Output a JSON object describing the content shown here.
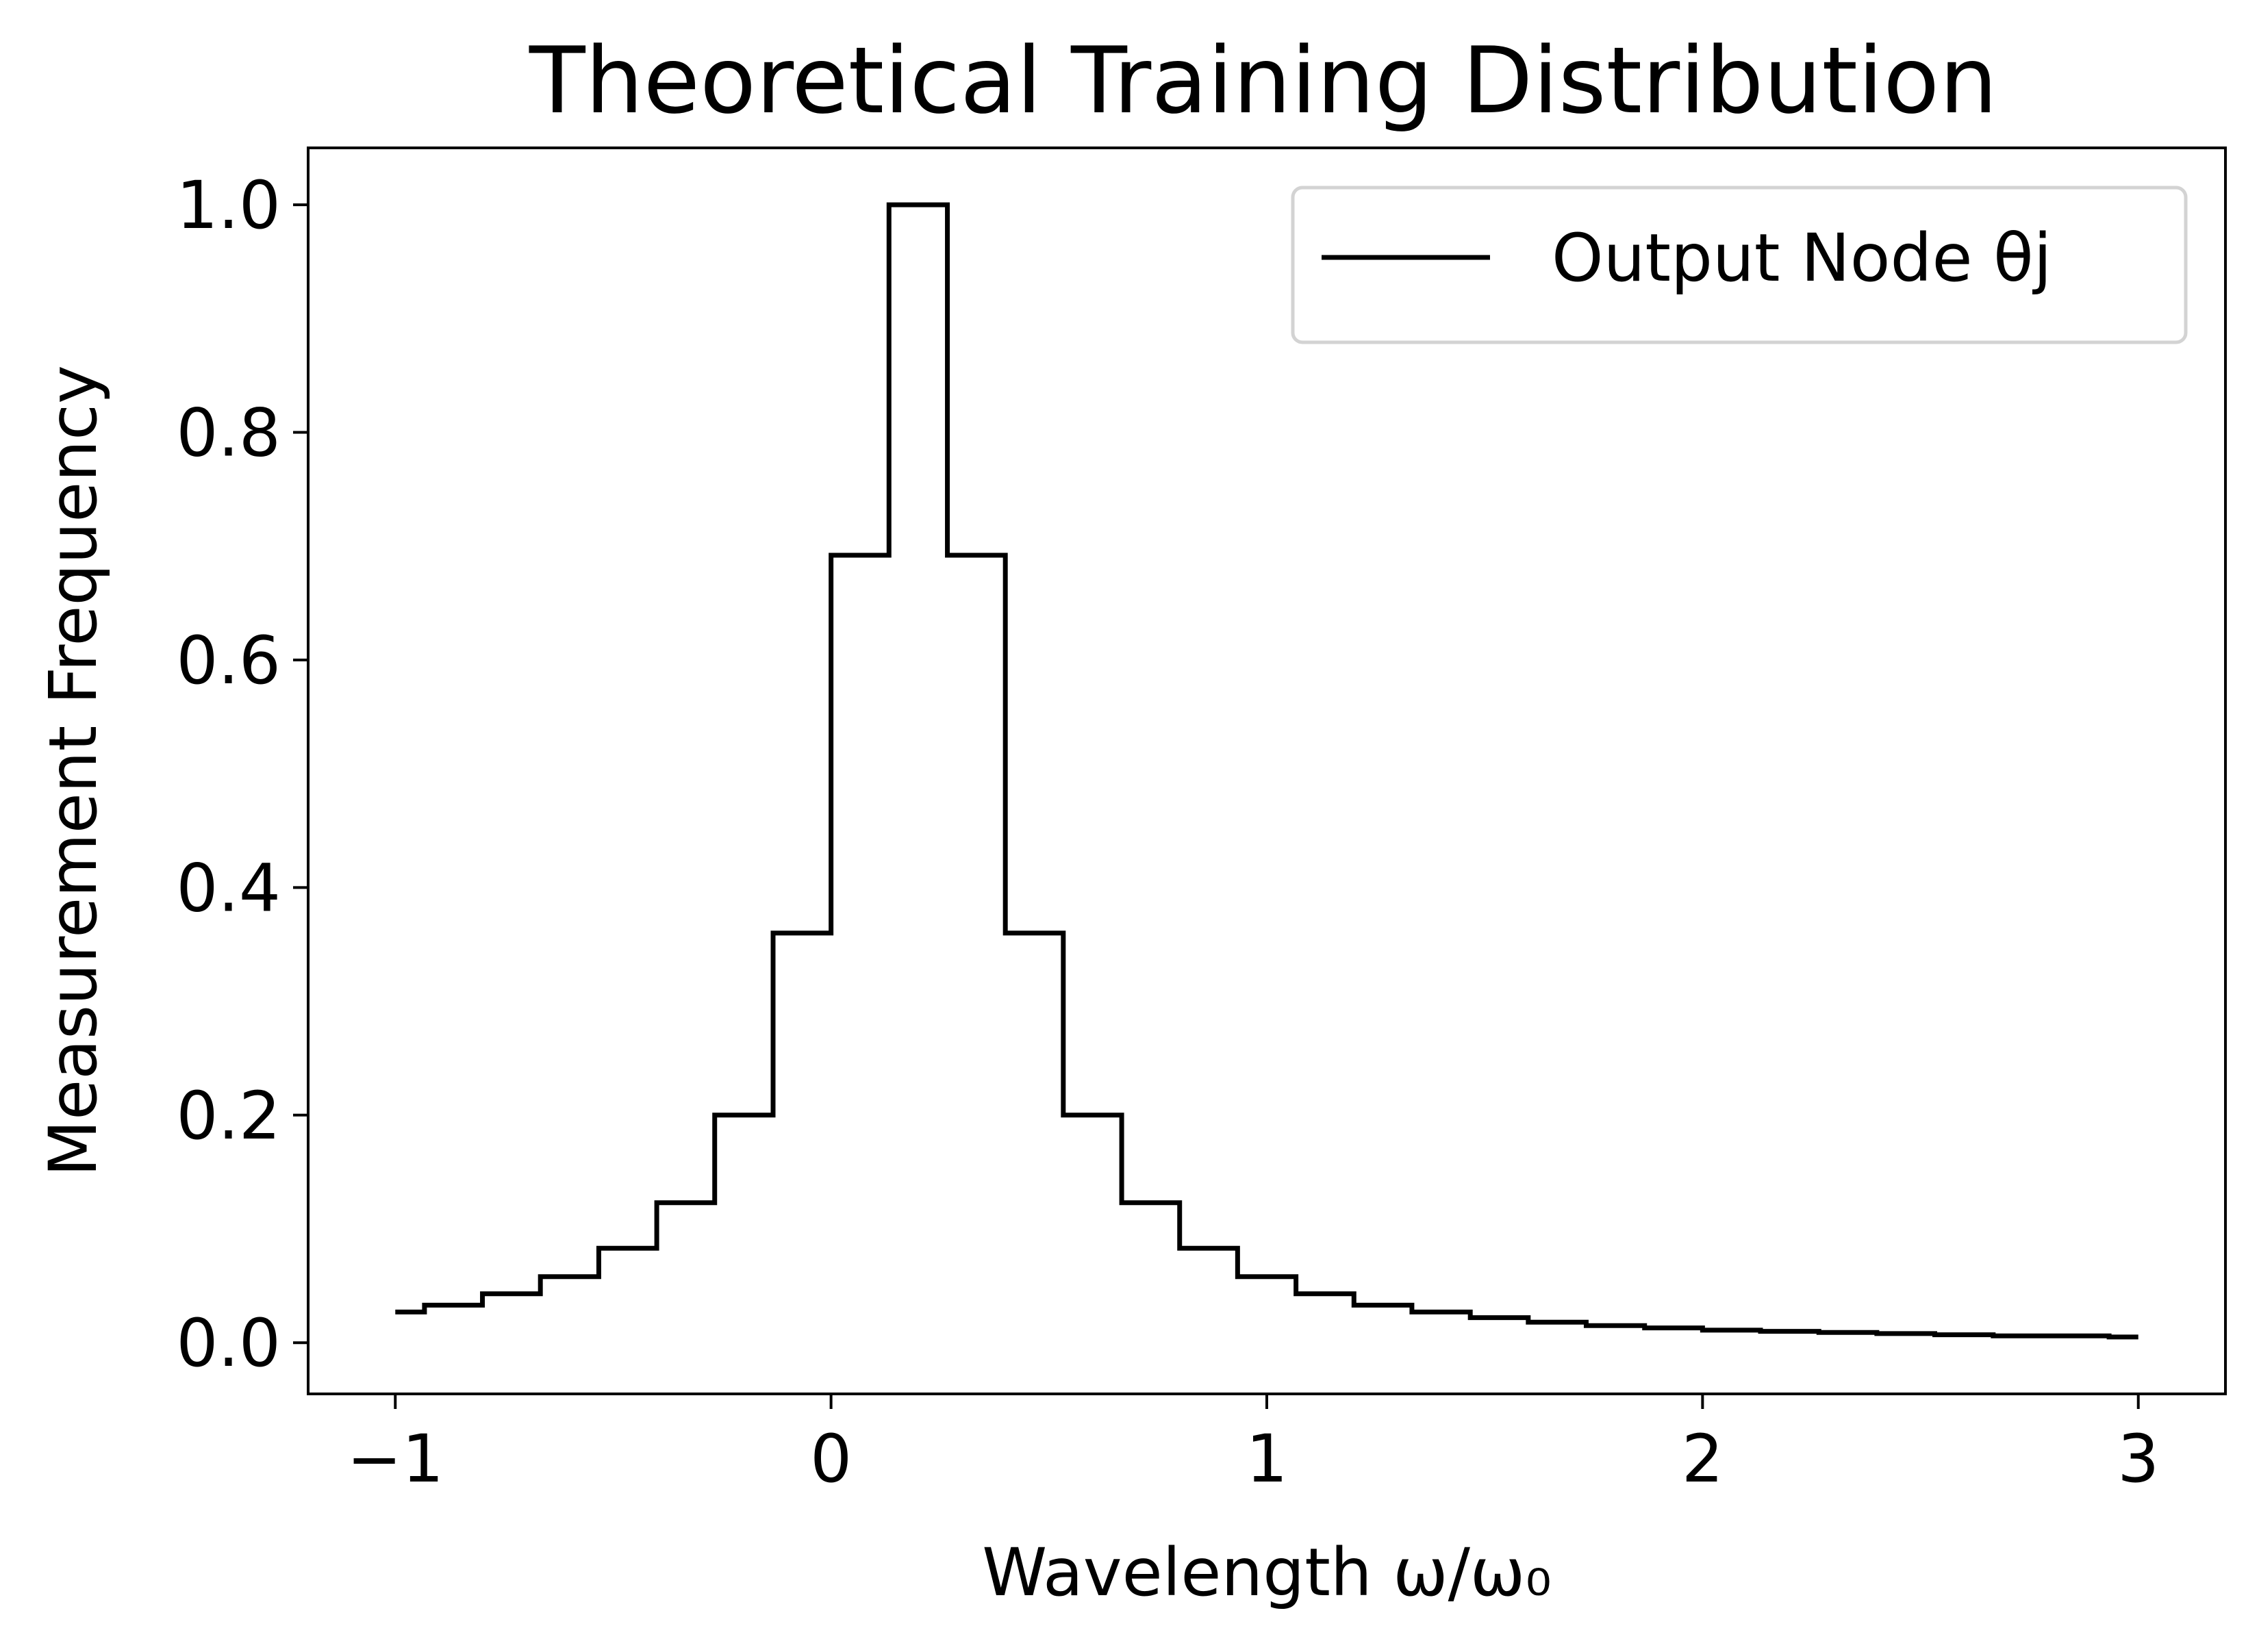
{
  "chart_data": {
    "type": "line",
    "style": "step",
    "title": "Theoretical Training Distribution",
    "xlabel": "Wavelength ω/ω₀",
    "ylabel": "Measurement Frequency",
    "xlim": [
      -1.2,
      3.2
    ],
    "ylim": [
      -0.045,
      1.05
    ],
    "x_ticks": [
      -1,
      0,
      1,
      2,
      3
    ],
    "x_tick_labels": [
      "−1",
      "0",
      "1",
      "2",
      "3"
    ],
    "y_ticks": [
      0.0,
      0.2,
      0.4,
      0.6,
      0.8,
      1.0
    ],
    "y_tick_labels": [
      "0.0",
      "0.2",
      "0.4",
      "0.6",
      "0.8",
      "1.0"
    ],
    "grid": false,
    "legend": {
      "position": "upper-right",
      "entries": [
        "Output Node θj"
      ]
    },
    "series": [
      {
        "name": "Output Node θj",
        "color": "#000000",
        "x": [
          -1.0,
          -0.933,
          -0.8,
          -0.667,
          -0.533,
          -0.4,
          -0.267,
          -0.133,
          0.0,
          0.133,
          0.267,
          0.4,
          0.533,
          0.667,
          0.8,
          0.933,
          1.067,
          1.2,
          1.333,
          1.467,
          1.6,
          1.733,
          1.867,
          2.0,
          2.133,
          2.267,
          2.4,
          2.533,
          2.667,
          2.8,
          2.933,
          3.0
        ],
        "y": [
          0.027,
          0.033,
          0.043,
          0.058,
          0.083,
          0.123,
          0.2,
          0.36,
          0.692,
          1.0,
          0.692,
          0.36,
          0.2,
          0.123,
          0.083,
          0.058,
          0.043,
          0.033,
          0.027,
          0.022,
          0.018,
          0.015,
          0.013,
          0.011,
          0.01,
          0.009,
          0.008,
          0.007,
          0.006,
          0.006,
          0.005,
          0.005
        ]
      }
    ]
  }
}
